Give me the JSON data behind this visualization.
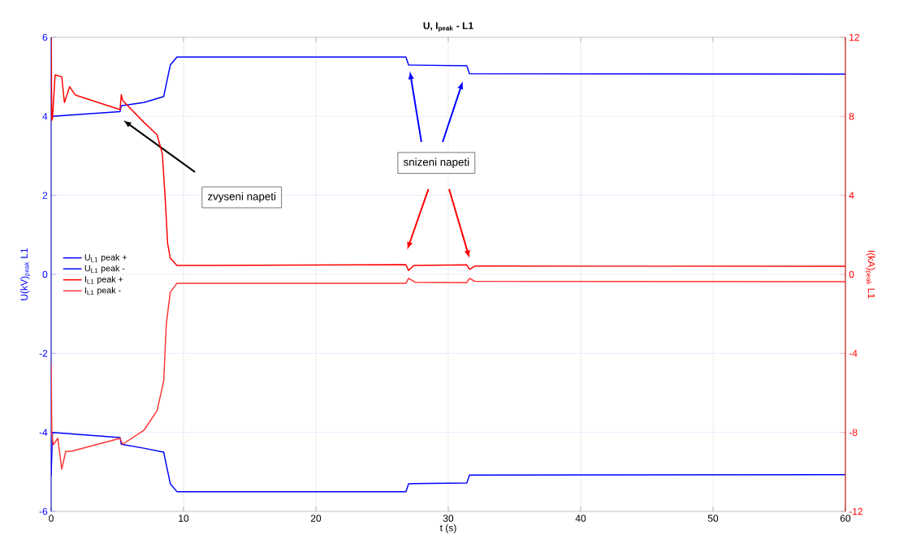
{
  "chart_data": {
    "type": "line",
    "title": "**U, I$_{peak}$ - L1**",
    "xlabel": "t (s)",
    "ylabel": "U(kV)$_{peak}$ L1",
    "y2label": "I(kA)$_{peak}$ L1",
    "xlim": [
      0,
      60
    ],
    "xticks": [
      0,
      10,
      20,
      30,
      40,
      50,
      60
    ],
    "ylim": [
      -6,
      6
    ],
    "yticks": [
      -6,
      -4,
      -2,
      0,
      2,
      4,
      6
    ],
    "y2lim": [
      -12,
      12
    ],
    "y2ticks": [
      -12,
      -8,
      -4,
      0,
      4,
      8,
      12
    ],
    "grid": true,
    "legend": "left",
    "annotations": [
      "zvyseni napeti",
      "snizeni napeti"
    ],
    "series": [
      {
        "name": "U$_{L1}$ peak +",
        "color": "#0000ff",
        "x": [
          0.1,
          5.2,
          5.3,
          7,
          8.5,
          9.0,
          9.5,
          26.8,
          27.0,
          31.4,
          31.6,
          60
        ],
        "values": [
          4.0,
          4.12,
          4.27,
          4.35,
          4.5,
          5.3,
          5.5,
          5.5,
          5.3,
          5.28,
          5.08,
          5.07
        ]
      },
      {
        "name": "U$_{L1}$ peak -",
        "color": "#0000ff",
        "x": [
          0,
          0.1,
          5.2,
          5.3,
          7,
          8.5,
          9.0,
          9.5,
          26.8,
          27.0,
          31.4,
          31.6,
          60
        ],
        "values": [
          -5.1,
          -4.0,
          -4.13,
          -4.3,
          -4.4,
          -4.5,
          -5.3,
          -5.5,
          -5.5,
          -5.3,
          -5.28,
          -5.08,
          -5.07
        ]
      },
      {
        "name": "I$_{L1}$ peak +",
        "color": "#ff0000",
        "axis": "y2",
        "x": [
          0,
          0.05,
          0.1,
          0.3,
          0.8,
          1.0,
          1.4,
          1.8,
          2.0,
          5.2,
          5.3,
          5.4,
          7.0,
          8.0,
          8.4,
          8.6,
          8.8,
          9.0,
          9.5,
          26.8,
          27.0,
          27.4,
          31.4,
          31.6,
          32.0,
          60
        ],
        "values": [
          12,
          7.8,
          7.9,
          10.1,
          10.0,
          8.7,
          9.5,
          9.1,
          9.04,
          8.34,
          9.1,
          8.8,
          7.7,
          7.07,
          6.1,
          4.0,
          1.56,
          0.82,
          0.45,
          0.49,
          0.2,
          0.45,
          0.48,
          0.25,
          0.42,
          0.41
        ]
      },
      {
        "name": "I$_{L1}$ peak -",
        "color": "#ff3333",
        "axis": "y2",
        "x": [
          0,
          0.05,
          0.15,
          0.5,
          0.8,
          1.1,
          1.5,
          5.2,
          5.4,
          7.0,
          8.0,
          8.5,
          8.7,
          9.0,
          9.5,
          26.8,
          27.0,
          27.5,
          31.4,
          31.6,
          32.0,
          60
        ],
        "values": [
          -4.5,
          -8.0,
          -8.63,
          -8.3,
          -9.86,
          -8.96,
          -8.96,
          -8.3,
          -8.6,
          -7.9,
          -6.9,
          -5.4,
          -2.5,
          -0.9,
          -0.45,
          -0.45,
          -0.2,
          -0.4,
          -0.42,
          -0.2,
          -0.35,
          -0.37
        ]
      }
    ]
  }
}
